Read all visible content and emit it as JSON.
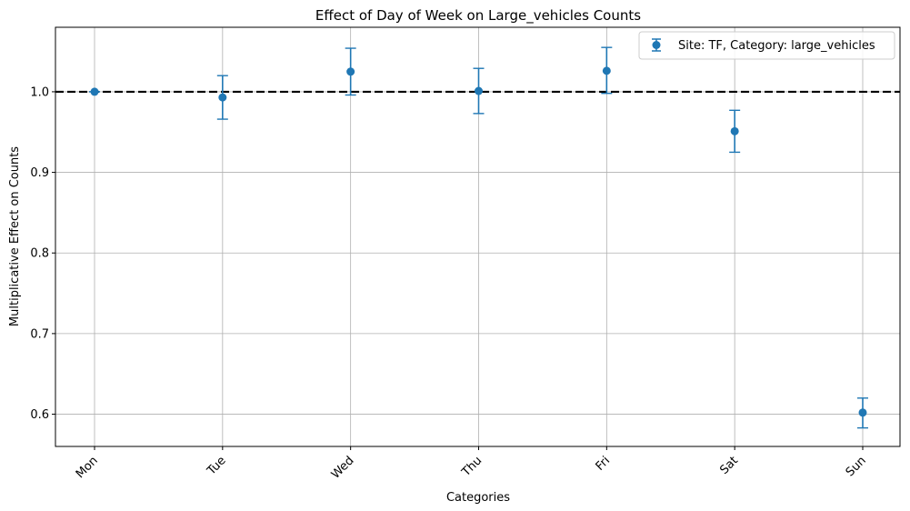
{
  "chart_data": {
    "type": "scatter",
    "title": "Effect of Day of Week on Large_vehicles Counts",
    "xlabel": "Categories",
    "ylabel": "Multiplicative Effect on Counts",
    "categories": [
      "Mon",
      "Tue",
      "Wed",
      "Thu",
      "Fri",
      "Sat",
      "Sun"
    ],
    "ylim": [
      0.56,
      1.08
    ],
    "yticks": [
      0.6,
      0.7,
      0.8,
      0.9,
      1.0
    ],
    "ytick_labels": [
      "0.6",
      "0.7",
      "0.8",
      "0.9",
      "1.0"
    ],
    "grid": true,
    "legend_position": "top-right",
    "reference_line": {
      "y": 1.0,
      "style": "dashed",
      "color": "#000000"
    },
    "series": [
      {
        "name": "Site: TF, Category: large_vehicles",
        "color": "#1f77b4",
        "values": [
          1.0,
          0.993,
          1.025,
          1.001,
          1.026,
          0.951,
          0.602
        ],
        "error_low": [
          1.0,
          0.966,
          0.996,
          0.973,
          0.998,
          0.925,
          0.583
        ],
        "error_high": [
          1.0,
          1.02,
          1.054,
          1.029,
          1.055,
          0.977,
          0.62
        ]
      }
    ]
  }
}
